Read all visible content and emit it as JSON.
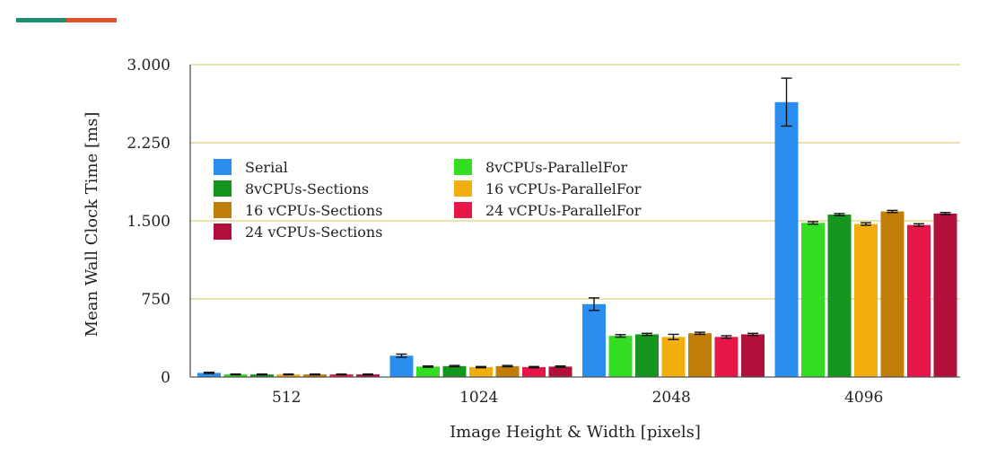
{
  "accent": {
    "colors": [
      "#1a8f6e",
      "#e2522a"
    ]
  },
  "chart_data": {
    "type": "bar",
    "title": "",
    "xlabel": "Image Height & Width [pixels]",
    "ylabel": "Mean Wall Clock Time [ms]",
    "categories": [
      "512",
      "1024",
      "2048",
      "4096"
    ],
    "ylim": [
      0,
      3000
    ],
    "yticks": [
      0,
      750,
      1500,
      2250,
      3000
    ],
    "ytick_labels": [
      "0",
      "750",
      "1.500",
      "2.250",
      "3.000"
    ],
    "grid": "horizontal",
    "legend_position": "top-left",
    "series": [
      {
        "name": "Serial",
        "color": "#2a8ef0",
        "values": [
          40,
          205,
          700,
          2640
        ],
        "errors": [
          6,
          15,
          60,
          230
        ]
      },
      {
        "name": "8vCPUs-ParallelFor",
        "color": "#33dd22",
        "values": [
          25,
          100,
          395,
          1480
        ],
        "errors": [
          4,
          6,
          12,
          12
        ]
      },
      {
        "name": "8vCPUs-Sections",
        "color": "#14951e",
        "values": [
          25,
          105,
          410,
          1560
        ],
        "errors": [
          4,
          6,
          10,
          10
        ]
      },
      {
        "name": "16 vCPUs-ParallelFor",
        "color": "#f2ae0c",
        "values": [
          25,
          95,
          385,
          1470
        ],
        "errors": [
          4,
          6,
          25,
          12
        ]
      },
      {
        "name": "16 vCPUs-Sections",
        "color": "#c07e08",
        "values": [
          25,
          105,
          420,
          1590
        ],
        "errors": [
          4,
          6,
          10,
          10
        ]
      },
      {
        "name": "24 vCPUs-ParallelFor",
        "color": "#e81648",
        "values": [
          25,
          95,
          385,
          1460
        ],
        "errors": [
          4,
          6,
          12,
          12
        ]
      },
      {
        "name": "24 vCPUs-Sections",
        "color": "#b0103a",
        "values": [
          25,
          100,
          410,
          1570
        ],
        "errors": [
          4,
          6,
          10,
          10
        ]
      }
    ]
  }
}
